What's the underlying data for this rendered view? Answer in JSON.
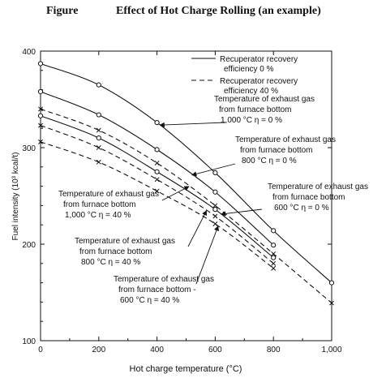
{
  "figure_label": "Figure",
  "chart_data": {
    "type": "line",
    "title": "Effect of Hot Charge Rolling (an example)",
    "xlabel": "Hot charge temperature (°C)",
    "ylabel": "Fuel intensity (10³ kcal/t)",
    "xlim": [
      0,
      1000
    ],
    "ylim": [
      100,
      400
    ],
    "x_ticks": [
      0,
      200,
      400,
      600,
      800,
      1000
    ],
    "x_tick_labels": [
      "0",
      "200",
      "400",
      "600",
      "800",
      "1,000"
    ],
    "y_ticks": [
      100,
      200,
      300,
      400
    ],
    "y_tick_labels": [
      "100",
      "200",
      "300",
      "400"
    ],
    "grid": false,
    "legend": {
      "position": "top-right",
      "entries": [
        {
          "style": "solid",
          "line1": "Recuperator recovery",
          "line2": "efficiency   0 %"
        },
        {
          "style": "dashed",
          "line1": "Recuperator recovery",
          "line2": "efficiency  40 %"
        }
      ]
    },
    "series": [
      {
        "key": "s1000_0",
        "style": "solid",
        "marker": "o",
        "x": [
          0,
          200,
          400,
          600,
          800,
          1000
        ],
        "y": [
          387,
          365,
          326,
          274,
          214,
          160
        ]
      },
      {
        "key": "s800_0",
        "style": "solid",
        "marker": "o",
        "x": [
          0,
          200,
          400,
          600,
          800
        ],
        "y": [
          358,
          334,
          298,
          254,
          199
        ]
      },
      {
        "key": "s600_0",
        "style": "solid",
        "marker": "o",
        "x": [
          0,
          200,
          400,
          600,
          800
        ],
        "y": [
          333,
          310,
          275,
          236,
          186
        ]
      },
      {
        "key": "s1000_40",
        "style": "dashed",
        "marker": "x",
        "x": [
          0,
          200,
          400,
          600,
          800,
          1000
        ],
        "y": [
          340,
          318,
          284,
          240,
          190,
          139
        ]
      },
      {
        "key": "s800_40",
        "style": "dashed",
        "marker": "x",
        "x": [
          0,
          200,
          400,
          600,
          800
        ],
        "y": [
          323,
          300,
          267,
          229,
          180
        ]
      },
      {
        "key": "s600_40",
        "style": "dashed",
        "marker": "x",
        "x": [
          0,
          200,
          400,
          600,
          800
        ],
        "y": [
          306,
          285,
          255,
          221,
          175
        ]
      }
    ],
    "annotations": [
      {
        "series": "s1000_0",
        "lines": [
          "Temperature of exhaust gas",
          "from furnace bottom",
          "1,000 °C  η = 0 %"
        ],
        "point": [
          410,
          320
        ]
      },
      {
        "series": "s800_0",
        "lines": [
          "Temperature of exhaust gas",
          "from furnace bottom",
          "800 °C  η = 0 %"
        ],
        "point": [
          520,
          285
        ]
      },
      {
        "series": "s600_0",
        "lines": [
          "Temperature of exhaust gas",
          "from furnace bottom",
          "600 °C  η = 0 %"
        ],
        "point": [
          620,
          240
        ]
      },
      {
        "series": "s1000_40",
        "lines": [
          "Temperature of exhaust gas",
          "from furnace bottom",
          "1,000 °C  η = 40 %"
        ],
        "point": [
          510,
          256
        ]
      },
      {
        "series": "s800_40",
        "lines": [
          "Temperature of exhaust gas",
          "from furnace bottom",
          "800 °C  η = 40 %"
        ],
        "point": [
          570,
          240
        ]
      },
      {
        "series": "s600_40",
        "lines": [
          "Temperature of exhaust gas",
          "from furnace bottom -",
          "600 °C  η = 40 %"
        ],
        "point": [
          610,
          218
        ]
      }
    ]
  }
}
